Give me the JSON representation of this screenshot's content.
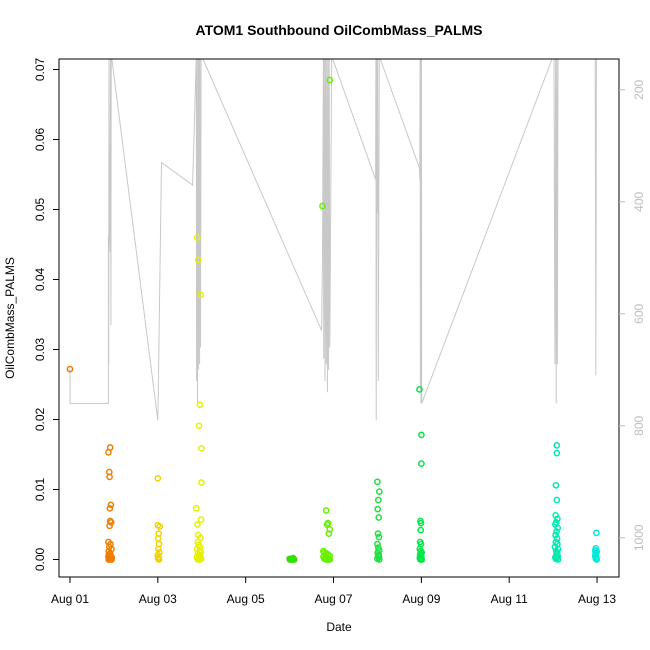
{
  "chart_data": {
    "type": "scatter",
    "title": "ATOM1 Southbound OilCombMass_PALMS",
    "xlabel": "Date",
    "ylabel": "OilCombMass_PALMS",
    "x_range": [
      "2016-07-31T18:00",
      "2016-08-13T12:00"
    ],
    "ylim": [
      -0.0025,
      0.0715
    ],
    "y2lim": [
      1070,
      145
    ],
    "x_ticks": [
      {
        "date": "2016-08-01",
        "label": "Aug 01"
      },
      {
        "date": "2016-08-03",
        "label": "Aug 03"
      },
      {
        "date": "2016-08-05",
        "label": "Aug 05"
      },
      {
        "date": "2016-08-07",
        "label": "Aug 07"
      },
      {
        "date": "2016-08-09",
        "label": "Aug 09"
      },
      {
        "date": "2016-08-11",
        "label": "Aug 11"
      },
      {
        "date": "2016-08-13",
        "label": "Aug 13"
      }
    ],
    "y_ticks": [
      {
        "value": 0.0,
        "label": "0.00"
      },
      {
        "value": 0.01,
        "label": "0.01"
      },
      {
        "value": 0.02,
        "label": "0.02"
      },
      {
        "value": 0.03,
        "label": "0.03"
      },
      {
        "value": 0.04,
        "label": "0.04"
      },
      {
        "value": 0.05,
        "label": "0.05"
      },
      {
        "value": 0.06,
        "label": "0.06"
      },
      {
        "value": 0.07,
        "label": "0.07"
      }
    ],
    "y2_ticks": [
      {
        "value": 200,
        "label": "200"
      },
      {
        "value": 400,
        "label": "400"
      },
      {
        "value": 600,
        "label": "600"
      },
      {
        "value": 800,
        "label": "800"
      },
      {
        "value": 1000,
        "label": "1000"
      }
    ],
    "colors": {
      "line": "#c8c8c8",
      "right_axis": "#bdbdbd",
      "frame": "#000000"
    },
    "series": [
      {
        "color": "#ef7d00",
        "x": [
          0.0,
          0.0,
          0.0,
          0.0,
          0.0,
          0.0,
          0.0,
          0.0,
          0.0,
          0.0,
          0.0,
          0.0,
          0.0,
          0.0,
          0.0,
          0.0,
          0.0,
          0.0,
          0.0,
          0.0,
          0.0,
          0.0,
          0.0,
          0.0,
          0.0,
          0.0
        ],
        "y": [
          0.0272,
          0.016,
          0.0153,
          0.0125,
          0.0118,
          0.0078,
          0.0073,
          0.0055,
          0.0053,
          0.0048,
          0.0025,
          0.0022,
          0.0018,
          0.0015,
          0.0012,
          0.0009,
          0.0007,
          0.0005,
          0.0004,
          0.0003,
          0.0002,
          0.0001,
          0.0001,
          0.0,
          0.0,
          0.0
        ],
        "x_dates": [
          "2016-08-01T00:00",
          "2016-08-01T22:00",
          "2016-08-01T21:00",
          "2016-08-01T21:30",
          "2016-08-01T21:40",
          "2016-08-01T22:20",
          "2016-08-01T21:50",
          "2016-08-01T22:00",
          "2016-08-01T22:30",
          "2016-08-01T21:40",
          "2016-08-01T21:00",
          "2016-08-01T22:10",
          "2016-08-01T21:30",
          "2016-08-01T22:40",
          "2016-08-01T21:10",
          "2016-08-01T22:00",
          "2016-08-01T21:20",
          "2016-08-01T22:20",
          "2016-08-01T21:00",
          "2016-08-01T22:50",
          "2016-08-01T21:40",
          "2016-08-01T22:00",
          "2016-08-01T22:30",
          "2016-08-01T21:10",
          "2016-08-01T21:50",
          "2016-08-01T22:40"
        ]
      },
      {
        "color": "#f3d200",
        "x_dates": [
          "2016-08-03T00:00",
          "2016-08-03T00:00",
          "2016-08-03T01:00",
          "2016-08-03T00:30",
          "2016-08-03T00:10",
          "2016-08-03T00:40",
          "2016-08-03T00:20",
          "2016-08-03T00:50",
          "2016-08-03T00:00",
          "2016-08-03T00:30",
          "2016-08-03T00:10",
          "2016-08-03T00:40"
        ],
        "y": [
          0.0116,
          0.0049,
          0.0047,
          0.0037,
          0.003,
          0.0022,
          0.0015,
          0.001,
          0.0006,
          0.0003,
          0.0001,
          0.0
        ]
      },
      {
        "color": "#e6f000",
        "x_dates": [
          "2016-08-03T21:30",
          "2016-08-03T22:00",
          "2016-08-03T23:30",
          "2016-08-03T23:00",
          "2016-08-03T22:30",
          "2016-08-03T23:50",
          "2016-08-03T23:50",
          "2016-08-03T21:00",
          "2016-08-03T23:40",
          "2016-08-03T21:40",
          "2016-08-03T22:00",
          "2016-08-03T23:20",
          "2016-08-03T21:50",
          "2016-08-03T22:20",
          "2016-08-03T23:00",
          "2016-08-03T21:30",
          "2016-08-03T22:50",
          "2016-08-03T23:30",
          "2016-08-03T21:50",
          "2016-08-03T22:30",
          "2016-08-03T23:10",
          "2016-08-03T21:20",
          "2016-08-03T22:40",
          "2016-08-03T23:40",
          "2016-08-03T22:00",
          "2016-08-03T23:00"
        ],
        "y": [
          0.046,
          0.0428,
          0.0378,
          0.0221,
          0.0191,
          0.0159,
          0.011,
          0.0073,
          0.0057,
          0.005,
          0.0035,
          0.0031,
          0.0025,
          0.0021,
          0.0018,
          0.0015,
          0.0012,
          0.001,
          0.0008,
          0.0006,
          0.0004,
          0.0003,
          0.0002,
          0.0001,
          0.0,
          0.0
        ]
      },
      {
        "color": "#33e000",
        "x_dates": [
          "2016-08-06T02:00",
          "2016-08-06T01:00",
          "2016-08-06T00:00",
          "2016-08-06T00:30",
          "2016-08-06T01:30",
          "2016-08-06T02:30",
          "2016-08-06T00:10",
          "2016-08-06T01:50"
        ],
        "y": [
          0.0002,
          0.0001,
          0.0001,
          0.0,
          0.0,
          0.0,
          0.0,
          0.0
        ]
      },
      {
        "color": "#66f000",
        "x_dates": [
          "2016-08-06T18:00",
          "2016-08-06T22:00",
          "2016-08-06T20:00",
          "2016-08-06T21:00",
          "2016-08-06T20:30",
          "2016-08-06T22:00",
          "2016-08-06T21:30",
          "2016-08-06T18:30",
          "2016-08-06T19:00",
          "2016-08-06T20:00",
          "2016-08-06T21:00",
          "2016-08-06T22:00",
          "2016-08-06T18:30",
          "2016-08-06T19:30",
          "2016-08-06T20:30",
          "2016-08-06T21:30",
          "2016-08-06T19:00",
          "2016-08-06T20:00",
          "2016-08-06T21:00",
          "2016-08-06T22:00"
        ],
        "y": [
          0.0505,
          0.0685,
          0.007,
          0.0052,
          0.005,
          0.0043,
          0.0037,
          0.0012,
          0.001,
          0.0009,
          0.0007,
          0.0005,
          0.0004,
          0.0003,
          0.0002,
          0.0001,
          0.0001,
          0.0,
          0.0,
          0.0
        ]
      },
      {
        "color": "#1fe040",
        "x_dates": [
          "2016-08-08T00:00",
          "2016-08-08T01:00",
          "2016-08-08T00:30",
          "2016-08-08T00:10",
          "2016-08-08T00:40",
          "2016-08-08T00:20",
          "2016-08-08T00:50",
          "2016-08-08T00:00",
          "2016-08-08T00:30",
          "2016-08-08T01:00",
          "2016-08-08T00:10",
          "2016-08-08T00:40",
          "2016-08-08T00:20",
          "2016-08-08T00:50",
          "2016-08-08T00:00",
          "2016-08-08T01:00"
        ],
        "y": [
          0.0111,
          0.0097,
          0.0085,
          0.0072,
          0.006,
          0.0037,
          0.0032,
          0.0022,
          0.0017,
          0.0013,
          0.001,
          0.0007,
          0.0005,
          0.0003,
          0.0001,
          0.0
        ]
      },
      {
        "color": "#00e848",
        "x_dates": [
          "2016-08-08T23:00",
          "2016-08-09T00:00",
          "2016-08-09T00:00",
          "2016-08-08T23:30",
          "2016-08-08T23:50",
          "2016-08-08T23:40",
          "2016-08-08T23:20",
          "2016-08-08T23:50",
          "2016-08-08T23:10",
          "2016-08-08T23:40",
          "2016-08-09T00:10",
          "2016-08-08T23:30",
          "2016-08-08T23:20",
          "2016-08-09T00:00",
          "2016-08-08T23:10",
          "2016-08-08T23:50",
          "2016-08-09T00:10",
          "2016-08-08T23:30"
        ],
        "y": [
          0.0243,
          0.0178,
          0.0137,
          0.0055,
          0.0052,
          0.0042,
          0.0025,
          0.0022,
          0.0015,
          0.0012,
          0.001,
          0.0008,
          0.0006,
          0.0004,
          0.0002,
          0.0001,
          0.0,
          0.0
        ]
      },
      {
        "color": "#00eab0",
        "x_dates": [
          "2016-08-12T02:00",
          "2016-08-12T02:00",
          "2016-08-12T01:30",
          "2016-08-12T02:00",
          "2016-08-12T01:20",
          "2016-08-12T02:20",
          "2016-08-12T01:40",
          "2016-08-12T01:10",
          "2016-08-12T02:30",
          "2016-08-12T01:50",
          "2016-08-12T01:20",
          "2016-08-12T02:10",
          "2016-08-12T01:30",
          "2016-08-12T02:20",
          "2016-08-12T01:00",
          "2016-08-12T02:40",
          "2016-08-12T01:40",
          "2016-08-12T02:10",
          "2016-08-12T01:50",
          "2016-08-12T02:30",
          "2016-08-12T01:10",
          "2016-08-12T02:00",
          "2016-08-12T01:30",
          "2016-08-12T02:40"
        ],
        "y": [
          0.0163,
          0.0152,
          0.0106,
          0.0085,
          0.0063,
          0.0058,
          0.0053,
          0.005,
          0.0045,
          0.004,
          0.0035,
          0.003,
          0.0025,
          0.0022,
          0.0018,
          0.0015,
          0.0012,
          0.001,
          0.0007,
          0.0005,
          0.0003,
          0.0002,
          0.0001,
          0.0
        ]
      },
      {
        "color": "#00ead8",
        "x_dates": [
          "2016-08-12T23:40",
          "2016-08-12T23:20",
          "2016-08-12T23:00",
          "2016-08-12T23:50",
          "2016-08-12T23:10",
          "2016-08-12T23:30",
          "2016-08-12T23:00",
          "2016-08-12T23:40",
          "2016-08-12T23:20",
          "2016-08-12T23:50"
        ],
        "y": [
          0.0038,
          0.0016,
          0.0013,
          0.0011,
          0.0009,
          0.0007,
          0.0005,
          0.0003,
          0.0001,
          0.0
        ]
      }
    ],
    "pressure_track": {
      "axis": "right",
      "x_dates": [
        "2016-08-01T00:00",
        "2016-08-01T00:00",
        "2016-08-01T21:00",
        "2016-08-01T21:00",
        "2016-08-01T21:10",
        "2016-08-01T21:20",
        "2016-08-01T21:40",
        "2016-08-01T22:00",
        "2016-08-01T22:10",
        "2016-08-01T22:20",
        "2016-08-01T22:30",
        "2016-08-01T22:40",
        "2016-08-03T00:00",
        "2016-08-03T00:10",
        "2016-08-03T02:00",
        "2016-08-03T19:00",
        "2016-08-03T21:00",
        "2016-08-03T21:10",
        "2016-08-03T21:20",
        "2016-08-03T21:40",
        "2016-08-03T22:00",
        "2016-08-03T22:10",
        "2016-08-03T22:30",
        "2016-08-03T22:50",
        "2016-08-03T23:00",
        "2016-08-03T23:20",
        "2016-08-03T23:40",
        "2016-08-04T00:00",
        "2016-08-06T17:30",
        "2016-08-06T18:00",
        "2016-08-06T18:30",
        "2016-08-06T18:40",
        "2016-08-06T19:00",
        "2016-08-06T19:20",
        "2016-08-06T19:40",
        "2016-08-06T20:00",
        "2016-08-06T20:20",
        "2016-08-06T20:40",
        "2016-08-06T21:00",
        "2016-08-06T21:20",
        "2016-08-06T21:40",
        "2016-08-06T22:00",
        "2016-08-06T23:00",
        "2016-08-07T23:00",
        "2016-08-07T23:10",
        "2016-08-07T23:20",
        "2016-08-07T23:40",
        "2016-08-08T00:00",
        "2016-08-08T00:10",
        "2016-08-08T00:30",
        "2016-08-08T01:00",
        "2016-08-08T23:00",
        "2016-08-08T23:10",
        "2016-08-08T23:20",
        "2016-08-08T23:30",
        "2016-08-08T23:40",
        "2016-08-08T23:50",
        "2016-08-09T00:00",
        "2016-08-09T00:10",
        "2016-08-12T00:00",
        "2016-08-12T00:30",
        "2016-08-12T01:00",
        "2016-08-12T01:20",
        "2016-08-12T01:40",
        "2016-08-12T02:00",
        "2016-08-12T02:20",
        "2016-08-12T02:40",
        "2016-08-12T03:00",
        "2016-08-12T23:00",
        "2016-08-12T23:20",
        "2016-08-12T23:40",
        "2016-08-13T00:00"
      ],
      "values": [
        700,
        760,
        760,
        460,
        690,
        140,
        460,
        490,
        140,
        620,
        140,
        140,
        790,
        760,
        330,
        370,
        140,
        720,
        140,
        760,
        140,
        700,
        140,
        690,
        140,
        660,
        140,
        140,
        630,
        500,
        140,
        680,
        140,
        720,
        140,
        690,
        140,
        740,
        140,
        700,
        140,
        660,
        140,
        360,
        140,
        790,
        140,
        420,
        140,
        720,
        140,
        340,
        360,
        140,
        740,
        140,
        760,
        140,
        760,
        140,
        140,
        690,
        140,
        760,
        140,
        690,
        140,
        140,
        140,
        710,
        140,
        140
      ]
    }
  }
}
